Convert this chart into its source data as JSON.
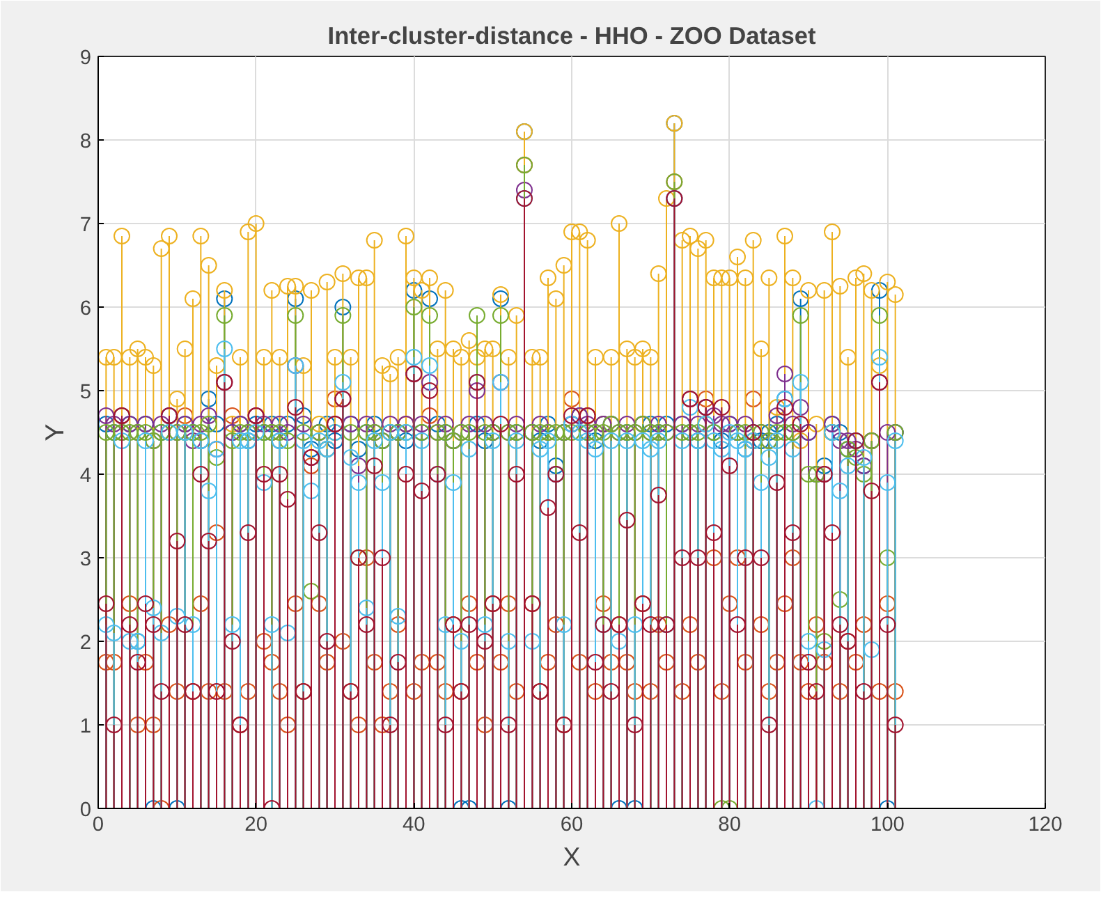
{
  "chart_data": {
    "type": "lollipop",
    "title": "Inter-cluster-distance - HHO - ZOO Dataset",
    "xlabel": "X",
    "ylabel": "Y",
    "x": [
      1,
      2,
      3,
      4,
      5,
      6,
      7,
      8,
      9,
      10,
      11,
      12,
      13,
      14,
      15,
      16,
      17,
      18,
      19,
      20,
      21,
      22,
      23,
      24,
      25,
      26,
      27,
      28,
      29,
      30,
      31,
      32,
      33,
      34,
      35,
      36,
      37,
      38,
      39,
      40,
      41,
      42,
      43,
      44,
      45,
      46,
      47,
      48,
      49,
      50,
      51,
      52,
      53,
      54,
      55,
      56,
      57,
      58,
      59,
      60,
      61,
      62,
      63,
      64,
      65,
      66,
      67,
      68,
      69,
      70,
      71,
      72,
      73,
      74,
      75,
      76,
      77,
      78,
      79,
      80,
      81,
      82,
      83,
      84,
      85,
      86,
      87,
      88,
      89,
      90,
      91,
      92,
      93,
      94,
      95,
      96,
      97,
      98,
      99,
      100,
      101
    ],
    "xlim": [
      0,
      120
    ],
    "xticks": [
      0,
      20,
      40,
      60,
      80,
      100,
      120
    ],
    "ylim": [
      0,
      9
    ],
    "yticks": [
      0,
      1,
      2,
      3,
      4,
      5,
      6,
      7,
      8,
      9
    ],
    "grid": true,
    "marker": "circle",
    "series": [
      {
        "color": "#0072bd",
        "values": [
          4.6,
          4.5,
          4.7,
          4.6,
          2.0,
          4.6,
          0,
          4.5,
          4.7,
          0,
          4.6,
          4.5,
          4.4,
          4.9,
          4.6,
          6.1,
          4.5,
          4.6,
          4.4,
          4.6,
          4.5,
          4.6,
          4.4,
          4.6,
          6.1,
          4.7,
          4.3,
          4.5,
          4.6,
          4.4,
          6.0,
          4.6,
          4.3,
          4.5,
          4.6,
          4.4,
          4.5,
          4.5,
          4.4,
          6.2,
          4.5,
          6.1,
          4.6,
          4.5,
          4.4,
          0,
          0,
          4.6,
          4.4,
          4.5,
          6.1,
          0,
          4.5,
          8.1,
          4.5,
          4.4,
          4.6,
          4.1,
          4.5,
          4.6,
          4.7,
          4.5,
          4.4,
          4.6,
          4.6,
          0,
          4.5,
          0,
          4.6,
          4.6,
          4.5,
          4.6,
          8.2,
          4.6,
          4.5,
          4.4,
          4.8,
          4.5,
          4.4,
          4.6,
          4.5,
          4.3,
          4.5,
          4.4,
          4.5,
          4.6,
          4.9,
          4.5,
          6.1,
          4.5,
          4.0,
          4.1,
          4.6,
          4.5,
          4.3,
          4.4,
          4.1,
          4.4,
          6.2,
          0,
          4.5
        ]
      },
      {
        "color": "#d95319",
        "values": [
          1.75,
          1.75,
          4.7,
          2.45,
          1.0,
          1.75,
          1.0,
          0,
          2.2,
          1.4,
          4.7,
          1.4,
          2.45,
          1.4,
          3.3,
          1.4,
          4.7,
          1.0,
          1.4,
          4.7,
          2.0,
          1.75,
          1.4,
          1.0,
          2.45,
          1.4,
          4.1,
          2.45,
          1.75,
          4.9,
          2.0,
          1.4,
          1.0,
          3.0,
          1.75,
          1.0,
          1.4,
          2.2,
          4.6,
          1.4,
          1.75,
          4.7,
          1.75,
          1.4,
          2.2,
          1.4,
          2.45,
          1.75,
          1.0,
          2.45,
          1.75,
          2.45,
          1.4,
          7.7,
          2.45,
          1.4,
          1.75,
          2.2,
          1.0,
          4.9,
          1.75,
          4.7,
          1.4,
          2.45,
          1.75,
          2.2,
          1.75,
          1.4,
          2.45,
          1.4,
          2.2,
          1.75,
          7.5,
          1.4,
          2.2,
          1.75,
          4.9,
          3.0,
          1.4,
          2.45,
          3.0,
          1.75,
          4.9,
          2.2,
          1.4,
          1.75,
          2.45,
          3.0,
          1.75,
          1.4,
          2.2,
          1.75,
          4.5,
          1.4,
          2.0,
          1.75,
          2.2,
          4.4,
          1.4,
          2.45,
          1.4
        ]
      },
      {
        "color": "#edb120",
        "values": [
          5.4,
          5.4,
          6.85,
          5.4,
          5.5,
          5.4,
          5.3,
          6.7,
          6.85,
          4.9,
          5.5,
          6.1,
          6.85,
          6.5,
          5.3,
          6.2,
          4.6,
          5.4,
          6.9,
          7.0,
          5.4,
          6.2,
          5.4,
          6.25,
          6.25,
          5.3,
          6.2,
          4.6,
          6.3,
          5.4,
          6.4,
          5.4,
          6.35,
          6.35,
          6.8,
          5.3,
          5.2,
          5.4,
          6.85,
          6.35,
          6.2,
          6.35,
          5.5,
          6.2,
          5.5,
          5.4,
          5.6,
          5.4,
          5.5,
          5.5,
          6.15,
          5.4,
          5.9,
          8.1,
          5.4,
          5.4,
          6.35,
          6.1,
          6.5,
          6.9,
          6.9,
          6.8,
          5.4,
          4.6,
          5.4,
          7.0,
          5.5,
          5.4,
          5.5,
          5.4,
          6.4,
          7.3,
          8.2,
          6.8,
          6.85,
          6.7,
          6.8,
          6.35,
          6.35,
          6.35,
          6.6,
          6.35,
          6.8,
          5.5,
          6.35,
          4.8,
          6.85,
          6.35,
          4.4,
          6.2,
          4.6,
          6.2,
          6.9,
          6.25,
          5.4,
          6.35,
          6.4,
          6.2,
          5.3,
          6.3,
          6.15
        ]
      },
      {
        "color": "#7e2f8e",
        "values": [
          4.7,
          4.6,
          4.5,
          4.6,
          4.5,
          4.6,
          4.4,
          4.6,
          4.7,
          4.5,
          4.6,
          4.4,
          4.6,
          4.7,
          4.3,
          5.1,
          4.5,
          4.6,
          4.5,
          4.7,
          4.6,
          4.5,
          4.6,
          4.5,
          5.3,
          4.6,
          4.2,
          4.5,
          4.3,
          4.6,
          4.9,
          4.6,
          4.1,
          4.6,
          4.5,
          4.4,
          4.6,
          4.5,
          4.6,
          5.2,
          4.6,
          5.1,
          4.5,
          4.6,
          4.4,
          4.5,
          4.6,
          5.0,
          4.6,
          4.5,
          5.1,
          4.5,
          4.6,
          7.4,
          4.5,
          4.6,
          4.5,
          4.0,
          4.5,
          4.6,
          4.7,
          4.6,
          4.5,
          4.6,
          4.6,
          4.5,
          4.6,
          4.5,
          4.6,
          4.5,
          4.6,
          4.5,
          7.3,
          4.6,
          4.9,
          4.6,
          4.8,
          4.7,
          4.6,
          4.6,
          4.5,
          4.6,
          4.4,
          4.5,
          4.4,
          4.7,
          5.2,
          4.6,
          4.8,
          4.5,
          4.0,
          4.0,
          4.6,
          4.4,
          4.4,
          4.3,
          4.1,
          4.4,
          5.1,
          4.5,
          4.5
        ]
      },
      {
        "color": "#77ac30",
        "values": [
          4.5,
          4.5,
          4.5,
          4.5,
          4.5,
          4.5,
          4.4,
          4.5,
          4.5,
          4.5,
          4.5,
          4.5,
          4.5,
          4.6,
          4.2,
          5.9,
          4.4,
          4.5,
          4.5,
          4.5,
          4.5,
          4.5,
          4.5,
          4.4,
          5.9,
          4.5,
          2.6,
          4.5,
          4.3,
          4.5,
          5.9,
          4.5,
          3.0,
          4.5,
          4.5,
          4.4,
          4.5,
          4.5,
          4.5,
          6.0,
          4.5,
          5.9,
          4.5,
          4.5,
          4.4,
          4.5,
          4.5,
          5.9,
          4.5,
          4.5,
          5.9,
          4.5,
          4.5,
          7.7,
          4.5,
          4.5,
          4.5,
          4.5,
          4.5,
          4.5,
          4.5,
          4.5,
          4.5,
          4.5,
          4.6,
          4.5,
          4.5,
          4.5,
          4.6,
          4.5,
          4.5,
          4.5,
          7.5,
          4.5,
          4.5,
          4.5,
          4.6,
          4.5,
          0,
          0,
          4.5,
          4.5,
          4.4,
          4.5,
          4.4,
          4.5,
          4.5,
          4.5,
          5.9,
          4.0,
          4.0,
          2.0,
          4.5,
          2.5,
          4.3,
          4.2,
          4.0,
          4.4,
          5.9,
          3.0,
          4.5
        ]
      },
      {
        "color": "#4dbeee",
        "values": [
          2.2,
          2.1,
          4.4,
          2.0,
          2.0,
          4.4,
          2.4,
          2.1,
          4.5,
          2.3,
          4.5,
          2.2,
          4.4,
          3.8,
          4.3,
          5.5,
          2.2,
          4.4,
          4.4,
          4.5,
          3.9,
          2.2,
          4.4,
          2.1,
          5.3,
          4.4,
          3.8,
          4.4,
          4.3,
          4.5,
          5.1,
          4.2,
          3.9,
          2.4,
          4.4,
          3.9,
          4.5,
          2.3,
          4.5,
          5.4,
          4.4,
          5.3,
          4.0,
          2.2,
          3.9,
          2.0,
          4.3,
          5.1,
          2.2,
          4.4,
          5.1,
          2.0,
          4.4,
          7.3,
          2.0,
          4.3,
          4.4,
          4.0,
          2.2,
          4.6,
          4.5,
          4.4,
          4.3,
          2.2,
          4.4,
          2.0,
          4.4,
          2.2,
          4.4,
          4.3,
          4.4,
          2.2,
          7.3,
          4.4,
          4.8,
          4.4,
          4.6,
          4.4,
          4.3,
          4.5,
          4.4,
          4.3,
          4.4,
          3.9,
          4.2,
          4.4,
          4.9,
          4.3,
          5.1,
          2.0,
          0,
          1.9,
          4.5,
          3.8,
          4.1,
          4.4,
          4.2,
          1.9,
          5.4,
          3.9,
          4.4
        ]
      },
      {
        "color": "#a2142f",
        "values": [
          2.45,
          1.0,
          4.7,
          2.2,
          1.75,
          2.45,
          2.2,
          1.4,
          4.7,
          3.2,
          2.2,
          1.4,
          4.0,
          3.2,
          1.4,
          5.1,
          2.0,
          1.0,
          3.3,
          4.7,
          4.0,
          0,
          4.0,
          3.7,
          4.8,
          1.4,
          4.2,
          3.3,
          2.0,
          4.6,
          4.9,
          1.4,
          3.0,
          2.2,
          4.1,
          3.0,
          1.0,
          1.75,
          4.0,
          5.2,
          3.8,
          5.0,
          4.0,
          1.0,
          2.2,
          1.4,
          2.2,
          5.1,
          2.0,
          2.45,
          4.6,
          1.0,
          4.0,
          7.3,
          2.45,
          1.4,
          3.6,
          4.0,
          1.0,
          4.7,
          3.3,
          4.7,
          1.75,
          2.2,
          1.4,
          2.2,
          3.45,
          1.0,
          2.45,
          2.2,
          3.75,
          2.2,
          7.3,
          3.0,
          4.9,
          3.0,
          4.8,
          3.3,
          4.8,
          4.1,
          2.2,
          3.0,
          4.5,
          3.0,
          1.0,
          3.9,
          4.8,
          3.3,
          4.6,
          1.75,
          1.4,
          4.0,
          3.3,
          2.2,
          2.0,
          4.4,
          1.4,
          3.8,
          5.1,
          2.2,
          1.0
        ]
      }
    ]
  }
}
